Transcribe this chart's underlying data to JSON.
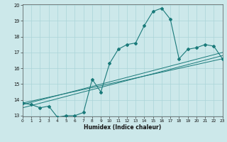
{
  "xlabel": "Humidex (Indice chaleur)",
  "xlim": [
    0,
    23
  ],
  "ylim": [
    13,
    20
  ],
  "yticks": [
    13,
    14,
    15,
    16,
    17,
    18,
    19,
    20
  ],
  "xticks": [
    0,
    1,
    2,
    3,
    4,
    5,
    6,
    7,
    8,
    9,
    10,
    11,
    12,
    13,
    14,
    15,
    16,
    17,
    18,
    19,
    20,
    21,
    22,
    23
  ],
  "background_color": "#cce8ea",
  "grid_color": "#aad4d8",
  "line_color": "#1a7a7a",
  "main_curve": {
    "x": [
      0,
      1,
      2,
      3,
      4,
      5,
      6,
      7,
      8,
      9,
      10,
      11,
      12,
      13,
      14,
      15,
      16,
      17,
      18,
      19,
      20,
      21,
      22,
      23
    ],
    "y": [
      13.8,
      13.7,
      13.5,
      13.6,
      12.9,
      13.0,
      13.0,
      13.2,
      15.3,
      14.5,
      16.3,
      17.2,
      17.5,
      17.6,
      18.7,
      19.6,
      19.8,
      19.1,
      16.6,
      17.2,
      17.3,
      17.5,
      17.4,
      16.6
    ]
  },
  "ref_line1": {
    "x": [
      0,
      23
    ],
    "y": [
      13.8,
      16.6
    ]
  },
  "ref_line2": {
    "x": [
      0,
      23
    ],
    "y": [
      13.5,
      16.8
    ]
  },
  "ref_line3": {
    "x": [
      0,
      23
    ],
    "y": [
      13.7,
      17.0
    ]
  }
}
